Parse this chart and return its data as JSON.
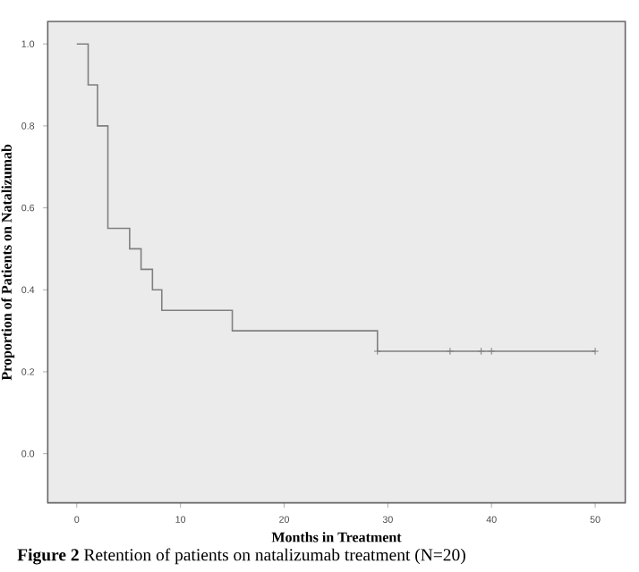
{
  "chart_data": {
    "type": "step",
    "title": "**Figure 2** Retention of patients on natalizumab treatment (N=20)",
    "xlabel": "Months in Treatment",
    "ylabel": "Proportion of Patients on Natalizumab",
    "series": [
      {
        "color": "#808080",
        "x": [
          0,
          1.1,
          2,
          3,
          5.1,
          6.2,
          7.3,
          8.2,
          15,
          29,
          50
        ],
        "values": [
          1,
          0.9,
          0.8,
          0.55,
          0.5,
          0.45,
          0.4,
          0.35,
          0.3,
          0.25,
          0.25
        ],
        "marker": "none"
      },
      {
        "type": "scatter",
        "color": "#808080",
        "x": [
          29,
          36,
          39,
          40,
          50
        ],
        "values": [
          0.25,
          0.25,
          0.25,
          0.25,
          0.25
        ],
        "marker": "cross"
      }
    ],
    "xlim": [
      -2.8,
      52.9
    ],
    "ylim": [
      -0.12,
      1.055
    ],
    "xticks": [
      0,
      10,
      20,
      30,
      40,
      50
    ],
    "yticks": [
      {
        "value": 0,
        "label": "0.0"
      },
      {
        "value": 0.2,
        "label": "0.2"
      },
      {
        "value": 0.4,
        "label": "0.4"
      },
      {
        "value": 0.6,
        "label": "0.6"
      },
      {
        "value": 0.8,
        "label": "0.8"
      },
      {
        "value": 1,
        "label": "1.0"
      }
    ],
    "grid": false
  }
}
